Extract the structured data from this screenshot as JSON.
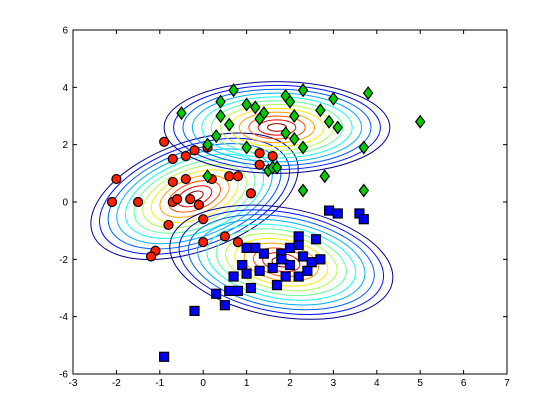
{
  "chart_data": {
    "type": "scatter",
    "title": "",
    "xlabel": "",
    "ylabel": "",
    "xlim": [
      -3,
      7
    ],
    "ylim": [
      -6,
      6
    ],
    "xticks": [
      -3,
      -2,
      -1,
      0,
      1,
      2,
      3,
      4,
      5,
      6,
      7
    ],
    "yticks": [
      -6,
      -4,
      -2,
      0,
      2,
      4,
      6
    ],
    "grid": false,
    "legend": "none",
    "series": [
      {
        "marker": "circle",
        "color": "#ff2000",
        "points": [
          [
            -2.1,
            0.0
          ],
          [
            -2.0,
            0.8
          ],
          [
            -1.5,
            0.0
          ],
          [
            -1.1,
            -1.7
          ],
          [
            -1.2,
            -1.9
          ],
          [
            -0.9,
            2.1
          ],
          [
            -0.8,
            -0.8
          ],
          [
            -0.7,
            1.5
          ],
          [
            -0.4,
            1.6
          ],
          [
            -0.7,
            0.7
          ],
          [
            -0.4,
            0.8
          ],
          [
            -0.7,
            0.0
          ],
          [
            -0.6,
            0.1
          ],
          [
            -0.3,
            0.1
          ],
          [
            -0.2,
            1.8
          ],
          [
            0.1,
            1.9
          ],
          [
            -0.1,
            -0.1
          ],
          [
            0.0,
            -0.6
          ],
          [
            0.2,
            0.8
          ],
          [
            0.6,
            0.9
          ],
          [
            0.8,
            0.9
          ],
          [
            1.1,
            0.3
          ],
          [
            0.5,
            -1.2
          ],
          [
            0.8,
            -1.4
          ],
          [
            1.3,
            1.7
          ],
          [
            1.6,
            1.6
          ],
          [
            1.3,
            1.3
          ],
          [
            0.0,
            -1.4
          ]
        ]
      },
      {
        "marker": "diamond",
        "color": "#00cc00",
        "points": [
          [
            -0.5,
            3.1
          ],
          [
            0.4,
            3.5
          ],
          [
            0.7,
            3.9
          ],
          [
            0.4,
            3.0
          ],
          [
            0.6,
            2.7
          ],
          [
            0.3,
            2.3
          ],
          [
            0.1,
            2.0
          ],
          [
            1.0,
            3.4
          ],
          [
            1.2,
            3.3
          ],
          [
            1.4,
            3.1
          ],
          [
            1.3,
            2.9
          ],
          [
            1.0,
            1.9
          ],
          [
            1.5,
            1.1
          ],
          [
            1.6,
            1.2
          ],
          [
            1.7,
            1.2
          ],
          [
            1.9,
            3.7
          ],
          [
            2.0,
            3.5
          ],
          [
            2.3,
            3.9
          ],
          [
            2.7,
            3.2
          ],
          [
            3.0,
            3.6
          ],
          [
            2.1,
            3.0
          ],
          [
            2.9,
            2.8
          ],
          [
            3.1,
            2.6
          ],
          [
            1.9,
            2.4
          ],
          [
            2.1,
            2.2
          ],
          [
            2.3,
            1.9
          ],
          [
            2.8,
            0.9
          ],
          [
            2.3,
            0.4
          ],
          [
            3.7,
            1.9
          ],
          [
            3.7,
            0.4
          ],
          [
            3.8,
            3.8
          ],
          [
            5.0,
            2.8
          ],
          [
            0.1,
            0.9
          ]
        ]
      },
      {
        "marker": "square",
        "color": "#0000ff",
        "points": [
          [
            -0.9,
            -5.4
          ],
          [
            -0.2,
            -3.8
          ],
          [
            0.3,
            -3.2
          ],
          [
            0.5,
            -3.6
          ],
          [
            0.6,
            -3.1
          ],
          [
            0.8,
            -3.1
          ],
          [
            0.7,
            -2.6
          ],
          [
            0.9,
            -2.2
          ],
          [
            1.0,
            -2.5
          ],
          [
            1.3,
            -2.4
          ],
          [
            1.4,
            -1.8
          ],
          [
            1.6,
            -2.3
          ],
          [
            1.8,
            -1.8
          ],
          [
            1.9,
            -2.6
          ],
          [
            2.0,
            -1.6
          ],
          [
            2.2,
            -1.5
          ],
          [
            2.3,
            -1.9
          ],
          [
            2.2,
            -2.6
          ],
          [
            2.4,
            -2.4
          ],
          [
            2.0,
            -2.2
          ],
          [
            1.8,
            -2.0
          ],
          [
            2.6,
            -1.3
          ],
          [
            2.5,
            -2.1
          ],
          [
            2.7,
            -2.0
          ],
          [
            1.7,
            -2.9
          ],
          [
            2.2,
            -1.2
          ],
          [
            1.0,
            -1.6
          ],
          [
            2.9,
            -0.3
          ],
          [
            3.1,
            -0.4
          ],
          [
            3.6,
            -0.4
          ],
          [
            3.7,
            -0.6
          ],
          [
            1.2,
            -1.6
          ],
          [
            1.1,
            -3.0
          ]
        ]
      }
    ],
    "contours": [
      {
        "center": [
          -0.2,
          0.2
        ],
        "radii": [
          2.5,
          1.9
        ],
        "rotation_deg": 20
      },
      {
        "center": [
          1.7,
          2.6
        ],
        "radii": [
          2.6,
          1.6
        ],
        "rotation_deg": 0
      },
      {
        "center": [
          1.8,
          -2.1
        ],
        "radii": [
          2.6,
          1.9
        ],
        "rotation_deg": -10
      }
    ]
  }
}
